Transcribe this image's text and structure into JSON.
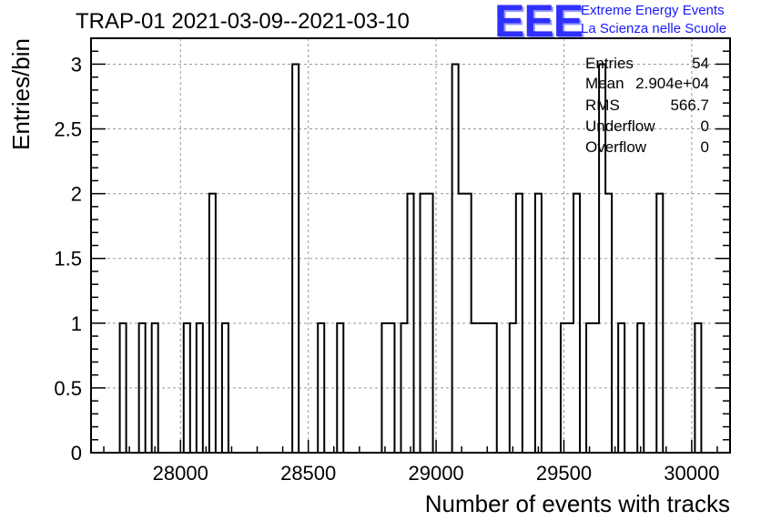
{
  "title": "TRAP-01 2021-03-09--2021-03-10",
  "logo": {
    "mark": "EEE",
    "line1": "Extreme Energy Events",
    "line2": "La Scienza nelle Scuole"
  },
  "stats": [
    {
      "label": "Entries",
      "value": "54"
    },
    {
      "label": "Mean",
      "value": "2.904e+04"
    },
    {
      "label": "RMS",
      "value": "566.7"
    },
    {
      "label": "Underflow",
      "value": "0"
    },
    {
      "label": "Overflow",
      "value": "0"
    }
  ],
  "colors": {
    "line": "#000000",
    "grid": "#999999"
  },
  "chart_data": {
    "type": "bar",
    "style": "step histogram",
    "xlabel": "Number of events with tracks",
    "ylabel": "Entries/bin",
    "xlim": [
      27650,
      30150
    ],
    "ylim": [
      0,
      3.2
    ],
    "grid": true,
    "bin_width": 25,
    "xticks": [
      28000,
      28500,
      29000,
      29500,
      30000
    ],
    "yticks": [
      0,
      0.5,
      1,
      1.5,
      2,
      2.5,
      3
    ],
    "ytick_labels": [
      "0",
      "0.5",
      "1",
      "1.5",
      "2",
      "2.5",
      "3"
    ],
    "bins": [
      {
        "x": 27775,
        "y": 1
      },
      {
        "x": 27850,
        "y": 1
      },
      {
        "x": 27900,
        "y": 1
      },
      {
        "x": 28025,
        "y": 1
      },
      {
        "x": 28075,
        "y": 1
      },
      {
        "x": 28125,
        "y": 2
      },
      {
        "x": 28175,
        "y": 1
      },
      {
        "x": 28450,
        "y": 3
      },
      {
        "x": 28550,
        "y": 1
      },
      {
        "x": 28625,
        "y": 1
      },
      {
        "x": 28800,
        "y": 1
      },
      {
        "x": 28825,
        "y": 1
      },
      {
        "x": 28875,
        "y": 1
      },
      {
        "x": 28900,
        "y": 2
      },
      {
        "x": 28950,
        "y": 2
      },
      {
        "x": 28975,
        "y": 2
      },
      {
        "x": 29075,
        "y": 3
      },
      {
        "x": 29100,
        "y": 2
      },
      {
        "x": 29125,
        "y": 2
      },
      {
        "x": 29150,
        "y": 1
      },
      {
        "x": 29175,
        "y": 1
      },
      {
        "x": 29200,
        "y": 1
      },
      {
        "x": 29225,
        "y": 1
      },
      {
        "x": 29300,
        "y": 1
      },
      {
        "x": 29325,
        "y": 2
      },
      {
        "x": 29400,
        "y": 2
      },
      {
        "x": 29500,
        "y": 1
      },
      {
        "x": 29525,
        "y": 1
      },
      {
        "x": 29550,
        "y": 2
      },
      {
        "x": 29600,
        "y": 1
      },
      {
        "x": 29625,
        "y": 1
      },
      {
        "x": 29650,
        "y": 3
      },
      {
        "x": 29675,
        "y": 2
      },
      {
        "x": 29725,
        "y": 1
      },
      {
        "x": 29800,
        "y": 1
      },
      {
        "x": 29875,
        "y": 2
      },
      {
        "x": 30025,
        "y": 1
      }
    ]
  }
}
